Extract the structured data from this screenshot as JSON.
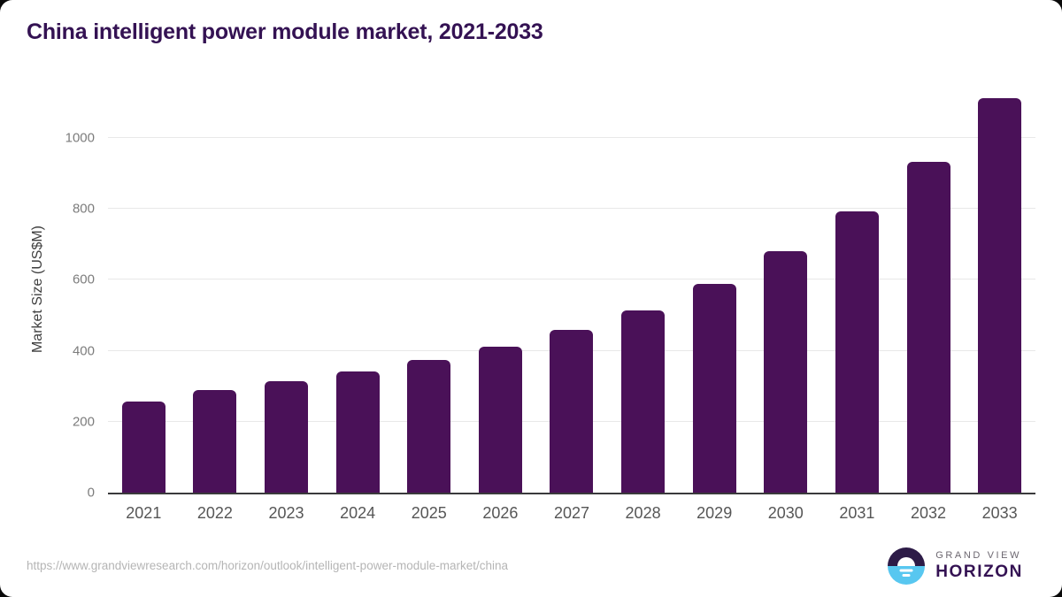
{
  "page": {
    "title": "China intelligent power module market, 2021-2033"
  },
  "chart_data": {
    "type": "bar",
    "title": "China intelligent power module market, 2021-2033",
    "categories": [
      "2021",
      "2022",
      "2023",
      "2024",
      "2025",
      "2026",
      "2027",
      "2028",
      "2029",
      "2030",
      "2031",
      "2032",
      "2033"
    ],
    "values": [
      256,
      289,
      314,
      341,
      373,
      411,
      458,
      514,
      589,
      681,
      793,
      933,
      1113
    ],
    "xlabel": "",
    "ylabel": "Market Size (US$M)",
    "ylim": [
      0,
      1142
    ],
    "yticks": [
      0,
      200,
      400,
      600,
      800,
      1000
    ],
    "grid": true,
    "legend": false,
    "bar_color": "#4a1158"
  },
  "footer": {
    "source_url": "https://www.grandviewresearch.com/horizon/outlook/intelligent-power-module-market/china",
    "logo": {
      "top_text": "GRAND VIEW",
      "bottom_text": "HORIZON"
    }
  },
  "colors": {
    "bar": "#4a1158",
    "title": "#341253",
    "gridline": "#e8e8e8",
    "axis_line": "#3a3a3c",
    "y_tick_text": "#7c7c7c",
    "x_tick_text": "#565656",
    "axis_title_text": "#3e3e3e",
    "url_text": "#b5b5b5",
    "logo_dark": "#2d1b47",
    "logo_blue": "#58c7f0",
    "logo_gray_text": "#6c6770"
  }
}
